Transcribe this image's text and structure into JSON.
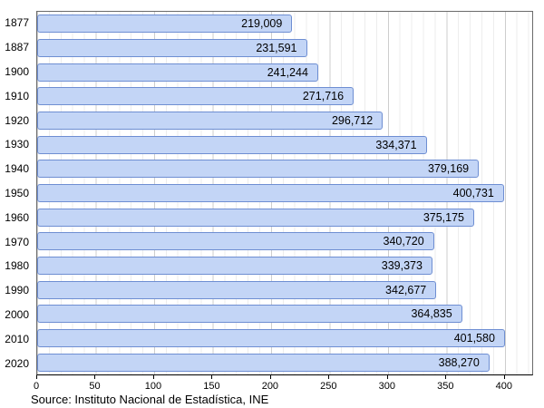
{
  "chart_data": {
    "type": "bar",
    "orientation": "horizontal",
    "title": "",
    "xlabel": "",
    "ylabel": "",
    "categories": [
      "1877",
      "1887",
      "1900",
      "1910",
      "1920",
      "1930",
      "1940",
      "1950",
      "1960",
      "1970",
      "1980",
      "1990",
      "2000",
      "2010",
      "2020"
    ],
    "values": [
      219009,
      231591,
      241244,
      271716,
      296712,
      334371,
      379169,
      400731,
      375175,
      340720,
      339373,
      342677,
      364835,
      401580,
      388270
    ],
    "value_labels": [
      "219,009",
      "231,591",
      "241,244",
      "271,716",
      "296,712",
      "334,371",
      "379,169",
      "400,731",
      "375,175",
      "340,720",
      "339,373",
      "342,677",
      "364,835",
      "401,580",
      "388,270"
    ],
    "xticks": [
      0,
      50,
      100,
      150,
      200,
      250,
      300,
      350,
      400
    ],
    "xlim": [
      0,
      425
    ],
    "value_scale": 1000,
    "grid": "minor-vertical",
    "legend": "none",
    "bar_fill": "#c3d5f6",
    "bar_border": "#6e8ed2"
  },
  "footer": {
    "source": "Source: Instituto Nacional de Estadística, INE"
  }
}
